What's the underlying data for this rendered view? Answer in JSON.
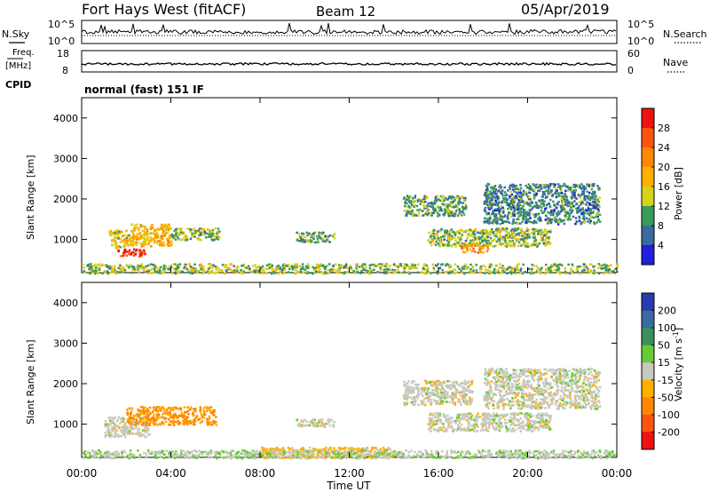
{
  "header": {
    "radar": "Fort Hays West (fitACF)",
    "beam": "Beam 12",
    "date": "05/Apr/2019"
  },
  "top_panels": {
    "nsky_label": "N.Sky",
    "nsearch_label": "N.Search",
    "nsky_ticks": [
      "10^5",
      "10^0"
    ],
    "nsearch_ticks": [
      "10^5",
      "10^0"
    ],
    "freq_label_1": "Freq.",
    "freq_label_2": "[MHz]",
    "freq_ticks": [
      "18",
      "8"
    ],
    "nave_label": "Nave",
    "nave_ticks": [
      "60",
      "0"
    ],
    "cpid_label": "CPID",
    "cpid_text": "normal (fast) 151 IF"
  },
  "colorbars": {
    "power": {
      "label": "Power [dB]",
      "ticks": [
        "28",
        "24",
        "20",
        "16",
        "12",
        "8",
        "4"
      ],
      "colors": [
        "#ee1111",
        "#ff5511",
        "#ff8800",
        "#ffb000",
        "#d6d21c",
        "#3a9a5a",
        "#3a6aa0",
        "#2020dd"
      ]
    },
    "velocity": {
      "label_main": "Velocity [m s",
      "label_exp": "-1",
      "label_end": "]",
      "ticks": [
        "200",
        "100",
        "50",
        "15",
        "-15",
        "-50",
        "-100",
        "-200"
      ],
      "colors": [
        "#2a3ab0",
        "#3a6aa0",
        "#3a8f5a",
        "#66cc33",
        "#c8c8c0",
        "#ffb000",
        "#ff8800",
        "#ff5511",
        "#ee1111"
      ]
    }
  },
  "chart_data": [
    {
      "type": "heatmap",
      "title": "Power",
      "xlabel": "",
      "ylabel": "Slant Range [km]",
      "x_ticks": [
        "00:00",
        "04:00",
        "08:00",
        "12:00",
        "16:00",
        "20:00",
        "00:00"
      ],
      "y_ticks": [
        "1000",
        "2000",
        "3000",
        "4000"
      ],
      "xlim": [
        0,
        24
      ],
      "ylim": [
        180,
        4500
      ],
      "regions": [
        {
          "t": [
            1.6,
            2.8
          ],
          "r": [
            600,
            800
          ],
          "value": 28
        },
        {
          "t": [
            1.2,
            2.2
          ],
          "r": [
            800,
            1250
          ],
          "value": 16
        },
        {
          "t": [
            2.2,
            4.0
          ],
          "r": [
            850,
            1400
          ],
          "value": 18
        },
        {
          "t": [
            4.0,
            6.2
          ],
          "r": [
            1000,
            1300
          ],
          "value": 12
        },
        {
          "t": [
            9.6,
            11.3
          ],
          "r": [
            950,
            1200
          ],
          "value": 10
        },
        {
          "t": [
            14.4,
            17.2
          ],
          "r": [
            1600,
            2100
          ],
          "value": 10
        },
        {
          "t": [
            15.5,
            21.0
          ],
          "r": [
            850,
            1300
          ],
          "value": 12
        },
        {
          "t": [
            17.0,
            18.2
          ],
          "r": [
            700,
            900
          ],
          "value": 20
        },
        {
          "t": [
            18.0,
            23.2
          ],
          "r": [
            1400,
            2400
          ],
          "value": 8
        },
        {
          "t": [
            0.0,
            24.0
          ],
          "r": [
            180,
            420
          ],
          "value": 12
        }
      ]
    },
    {
      "type": "heatmap",
      "title": "Velocity",
      "xlabel": "Time UT",
      "ylabel": "Slant Range [km]",
      "x_ticks": [
        "00:00",
        "04:00",
        "08:00",
        "12:00",
        "16:00",
        "20:00",
        "00:00"
      ],
      "y_ticks": [
        "1000",
        "2000",
        "3000",
        "4000"
      ],
      "xlim": [
        0,
        24
      ],
      "ylim": [
        180,
        4500
      ],
      "regions": [
        {
          "t": [
            1.0,
            3.0
          ],
          "r": [
            700,
            1200
          ],
          "value": 0
        },
        {
          "t": [
            2.0,
            6.0
          ],
          "r": [
            1000,
            1450
          ],
          "value": -60
        },
        {
          "t": [
            9.6,
            11.3
          ],
          "r": [
            950,
            1150
          ],
          "value": 0
        },
        {
          "t": [
            14.4,
            17.5
          ],
          "r": [
            1500,
            2100
          ],
          "value": 0
        },
        {
          "t": [
            15.5,
            21.0
          ],
          "r": [
            850,
            1300
          ],
          "value": 0
        },
        {
          "t": [
            18.0,
            23.2
          ],
          "r": [
            1400,
            2400
          ],
          "value": 0
        },
        {
          "t": [
            8.0,
            14.0
          ],
          "r": [
            180,
            450
          ],
          "value": -30
        },
        {
          "t": [
            0.0,
            24.0
          ],
          "r": [
            180,
            380
          ],
          "value": 10
        }
      ]
    }
  ]
}
